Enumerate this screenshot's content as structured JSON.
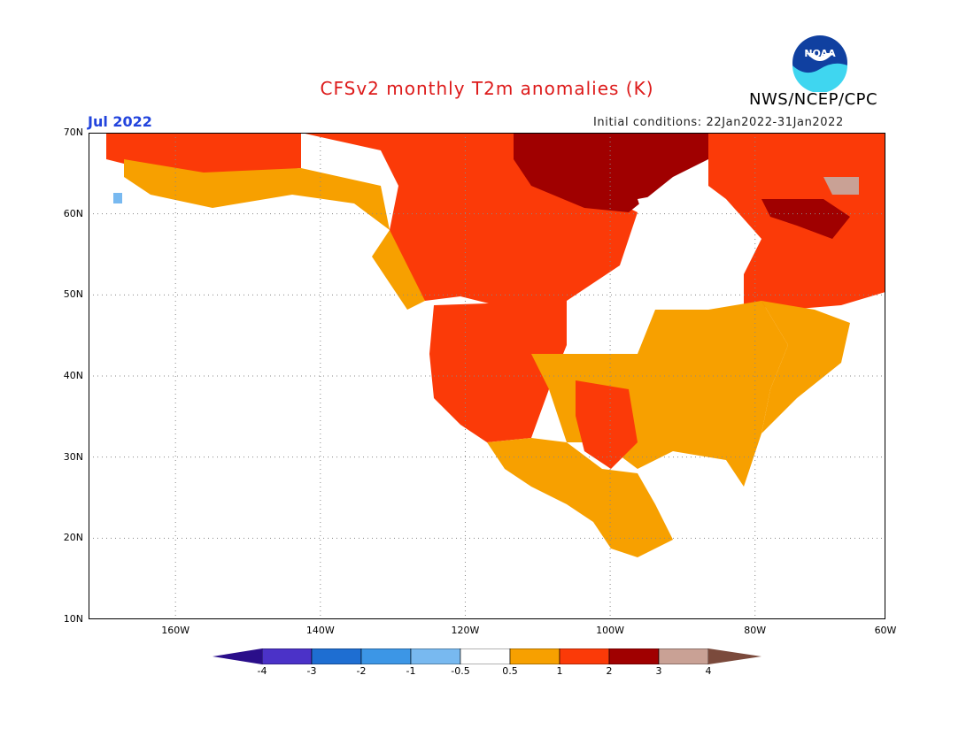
{
  "header": {
    "title": "CFSv2 monthly T2m anomalies (K)",
    "org": "NWS/NCEP/CPC",
    "month": "Jul 2022",
    "initial_conditions": "Initial conditions: 22Jan2022-31Jan2022",
    "logo_text": "NOAA"
  },
  "colors": {
    "title": "#dd1a1a",
    "month": "#2244dd",
    "bin_m4_m3": "#4b32c8",
    "bin_m3_m2": "#1e6ed2",
    "bin_m2_m1": "#3c96e6",
    "bin_m1_m05": "#78b9f0",
    "neutral": "#ffffff",
    "bin_05_1": "#f7a000",
    "bin_1_2": "#fb3a08",
    "bin_2_3": "#a00000",
    "bin_3_4": "#c9a195",
    "above_4": "#7b4a3c",
    "below_m4": "#2a0e8a"
  },
  "map": {
    "lat_labels": [
      "70N",
      "60N",
      "50N",
      "40N",
      "30N",
      "20N",
      "10N"
    ],
    "lon_labels": [
      "160W",
      "140W",
      "120W",
      "100W",
      "80W",
      "60W"
    ],
    "extent": {
      "lon": [
        -172,
        -62
      ],
      "lat": [
        10,
        70
      ]
    },
    "gridlines": true,
    "grid_lats": [
      60,
      50,
      40,
      30,
      20
    ],
    "grid_lons": [
      -160,
      -140,
      -120,
      -100,
      -80
    ]
  },
  "colorbar": {
    "labels": [
      "-4",
      "-3",
      "-2",
      "-1",
      "-0.5",
      "0.5",
      "1",
      "2",
      "3",
      "4"
    ],
    "bins": [
      "bin_m4_m3",
      "bin_m3_m2",
      "bin_m2_m1",
      "bin_m1_m05",
      "neutral",
      "bin_05_1",
      "bin_1_2",
      "bin_2_3",
      "bin_3_4"
    ]
  },
  "anomaly_regions": [
    {
      "name": "alaska-north",
      "level": "bin_1_2"
    },
    {
      "name": "alaska-interior",
      "level": "bin_05_1"
    },
    {
      "name": "canada-arctic-archipelago",
      "level": "bin_2_3"
    },
    {
      "name": "canada-west",
      "level": "bin_1_2"
    },
    {
      "name": "hudson-bay",
      "level": "neutral"
    },
    {
      "name": "quebec",
      "level": "bin_1_2"
    },
    {
      "name": "labrador",
      "level": "bin_2_3"
    },
    {
      "name": "baffin",
      "level": "bin_3_4"
    },
    {
      "name": "northern-plains",
      "level": "neutral"
    },
    {
      "name": "us-west",
      "level": "bin_1_2"
    },
    {
      "name": "us-central-south",
      "level": "bin_05_1"
    },
    {
      "name": "southern-plains",
      "level": "bin_1_2"
    },
    {
      "name": "us-east",
      "level": "bin_05_1"
    },
    {
      "name": "mexico",
      "level": "bin_05_1"
    },
    {
      "name": "bering-west",
      "level": "bin_m1_m05"
    }
  ]
}
